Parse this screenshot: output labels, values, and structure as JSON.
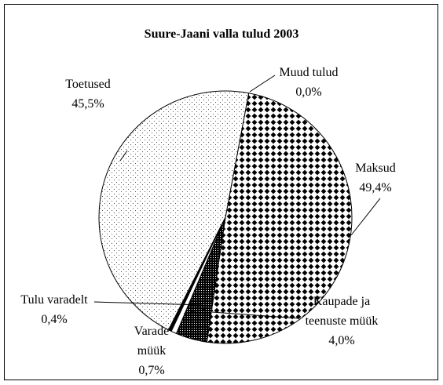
{
  "chart_data": {
    "type": "pie",
    "title": "Suure-Jaani valla tulud 2003",
    "categories": [
      "Muud tulud",
      "Maksud",
      "Kaupade ja teenuste müük",
      "Varade müük",
      "Tulu varadelt",
      "Toetused"
    ],
    "values": [
      0.0,
      49.4,
      4.0,
      0.7,
      0.4,
      45.5
    ],
    "value_labels": [
      "0,0%",
      "49,4%",
      "4,0%",
      "0,7%",
      "0,4%",
      "45,5%"
    ]
  }
}
